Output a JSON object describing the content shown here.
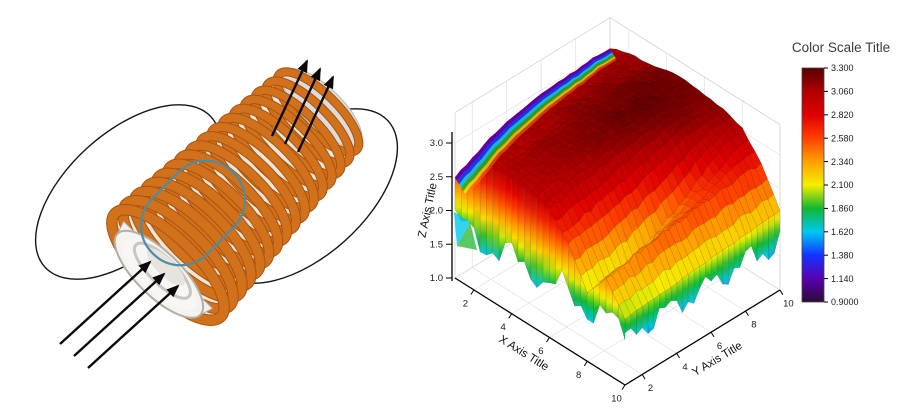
{
  "figure": {
    "background": "#ffffff"
  },
  "diagram": {
    "name": "solenoid-with-magnetic-field-lines",
    "coil_color": "#d2711c",
    "coil_outline_color": "#a8540f",
    "tube_body_color": "#efe6da",
    "tube_edge_color": "#c9b9a6",
    "end_cap_color": "#dcdcdc",
    "lip_color": "#f3f1ee",
    "bore_color": "#f7f6f4",
    "bore_ring_color": "#c9c5bf",
    "cross_section_outline_color": "#4e8ca6",
    "field_line_color": "#141414",
    "arrow_color": "#0a0a0a",
    "winding_count": 16
  },
  "chart": {
    "z_axis": {
      "title": "Z Axis Title",
      "ticks": [
        "1.0",
        "1.5",
        "2.0",
        "2.5",
        "3.0"
      ]
    },
    "x_axis": {
      "title": "X Axis Title",
      "ticks": [
        "2",
        "4",
        "6",
        "8",
        "10"
      ]
    },
    "y_axis": {
      "title": "Y Axis Title",
      "ticks": [
        "2",
        "4",
        "6",
        "8",
        "10"
      ]
    },
    "colorbar": {
      "title": "Color Scale Title",
      "levels": [
        "3.300",
        "3.060",
        "2.820",
        "2.580",
        "2.340",
        "2.100",
        "1.860",
        "1.620",
        "1.380",
        "1.140",
        "0.9000"
      ]
    }
  },
  "chart_data": {
    "type": "surface3d",
    "x": {
      "label": "X Axis Title",
      "min": 1,
      "max": 10,
      "tick_values": [
        2,
        4,
        6,
        8,
        10
      ]
    },
    "y": {
      "label": "Y Axis Title",
      "min": 1,
      "max": 10,
      "tick_values": [
        2,
        4,
        6,
        8,
        10
      ]
    },
    "z": {
      "label": "Z Axis Title",
      "min": 1.0,
      "max": 3.45,
      "tick_values": [
        1.0,
        1.5,
        2.0,
        2.5,
        3.0
      ]
    },
    "x_values": [
      1,
      2,
      3,
      4,
      5,
      6,
      7,
      8,
      9,
      10
    ],
    "y_values": [
      1,
      2,
      3,
      4,
      5,
      6,
      7,
      8,
      9,
      10
    ],
    "surface_z_rows_y1_to_y10": [
      [
        2.5,
        2.88,
        3.0,
        3.02,
        2.98,
        2.9,
        2.55,
        2.02,
        2.4,
        1.98
      ],
      [
        2.62,
        2.95,
        3.04,
        3.08,
        3.05,
        2.95,
        2.6,
        2.05,
        2.45,
        2.0
      ],
      [
        2.75,
        3.0,
        3.06,
        3.12,
        3.1,
        3.0,
        2.65,
        2.1,
        2.5,
        2.02
      ],
      [
        2.85,
        3.02,
        3.09,
        3.15,
        3.15,
        3.06,
        2.72,
        2.18,
        2.55,
        2.05
      ],
      [
        2.9,
        3.04,
        3.12,
        3.18,
        3.2,
        3.1,
        2.8,
        2.28,
        2.58,
        2.07
      ],
      [
        2.94,
        3.06,
        3.14,
        3.21,
        3.23,
        3.15,
        2.9,
        2.42,
        2.6,
        2.09
      ],
      [
        2.96,
        3.08,
        3.15,
        3.22,
        3.25,
        3.19,
        3.0,
        2.58,
        2.63,
        2.11
      ],
      [
        2.98,
        3.09,
        3.15,
        3.23,
        3.26,
        3.21,
        3.1,
        2.78,
        2.66,
        2.13
      ],
      [
        3.0,
        3.1,
        3.14,
        3.22,
        3.24,
        3.2,
        3.14,
        2.95,
        2.68,
        2.16
      ],
      [
        3.0,
        3.1,
        3.12,
        3.2,
        3.22,
        3.18,
        3.15,
        3.05,
        2.7,
        2.18
      ]
    ],
    "colormap": [
      {
        "v": 0.9,
        "c": "#2b0b36"
      },
      {
        "v": 1.14,
        "c": "#5a00b0"
      },
      {
        "v": 1.38,
        "c": "#1433ff"
      },
      {
        "v": 1.62,
        "c": "#00c8f0"
      },
      {
        "v": 1.86,
        "c": "#10b830"
      },
      {
        "v": 2.1,
        "c": "#f5ee00"
      },
      {
        "v": 2.34,
        "c": "#ffa000"
      },
      {
        "v": 2.58,
        "c": "#ff4000"
      },
      {
        "v": 2.82,
        "c": "#e00000"
      },
      {
        "v": 3.06,
        "c": "#b00000"
      },
      {
        "v": 3.3,
        "c": "#570000"
      }
    ],
    "colorbar": {
      "title": "Color Scale Title",
      "min": 0.9,
      "max": 3.3,
      "tick_values": [
        3.3,
        3.06,
        2.82,
        2.58,
        2.34,
        2.1,
        1.86,
        1.62,
        1.38,
        1.14,
        0.9
      ]
    },
    "legend_position": "right"
  }
}
